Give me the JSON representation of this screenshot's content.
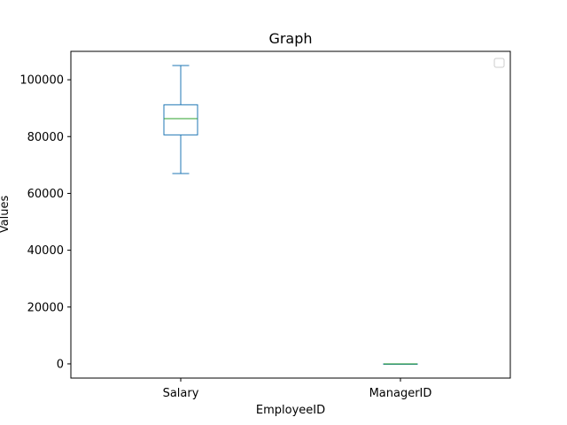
{
  "chart_data": {
    "type": "box",
    "title": "Graph",
    "xlabel": "EmployeeID",
    "ylabel": "Values",
    "categories": [
      "Salary",
      "ManagerID"
    ],
    "series": [
      {
        "category": "Salary",
        "min": 67000,
        "q1": 80600,
        "median": 86300,
        "q3": 91200,
        "max": 105000
      },
      {
        "category": "ManagerID",
        "min": 1,
        "q1": 1,
        "median": 2,
        "q3": 3,
        "max": 3
      }
    ],
    "ylim": [
      -5000,
      110000
    ],
    "yticks": [
      0,
      20000,
      40000,
      60000,
      80000,
      100000
    ],
    "grid": false,
    "legend": {
      "position": "top-right",
      "entries": []
    },
    "colors": {
      "box": "#1f77b4",
      "median": "#2ca02c",
      "axis": "#000000"
    }
  }
}
